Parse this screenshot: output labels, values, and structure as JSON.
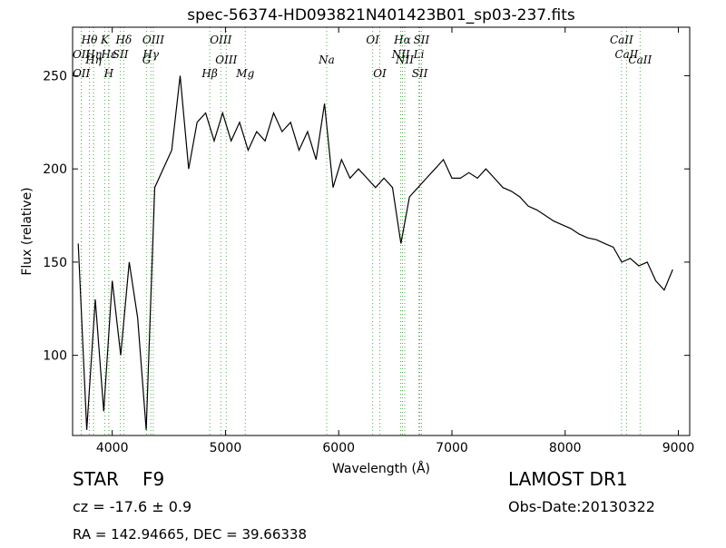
{
  "chart_data": {
    "type": "line",
    "title": "spec-56374-HD093821N401423B01_sp03-237.fits",
    "x_label": "Wavelength (Å)",
    "y_label": "Flux (relative)",
    "xlim": [
      3650,
      9100
    ],
    "ylim": [
      57,
      276
    ],
    "xticks": [
      4000,
      5000,
      6000,
      7000,
      8000,
      9000
    ],
    "yticks": [
      100,
      150,
      200,
      250
    ],
    "x": [
      3700,
      3775,
      3850,
      3925,
      4000,
      4075,
      4150,
      4225,
      4300,
      4375,
      4450,
      4525,
      4600,
      4675,
      4750,
      4825,
      4900,
      4975,
      5050,
      5125,
      5200,
      5275,
      5350,
      5425,
      5500,
      5575,
      5650,
      5725,
      5800,
      5875,
      5950,
      6025,
      6100,
      6175,
      6250,
      6325,
      6400,
      6475,
      6550,
      6625,
      6700,
      6775,
      6850,
      6925,
      7000,
      7075,
      7150,
      7225,
      7300,
      7375,
      7450,
      7525,
      7600,
      7675,
      7750,
      7825,
      7900,
      7975,
      8050,
      8125,
      8200,
      8275,
      8350,
      8425,
      8500,
      8575,
      8650,
      8725,
      8800,
      8875,
      8950
    ],
    "series": [
      {
        "name": "Flux",
        "color": "#000000",
        "values": [
          160,
          60,
          130,
          70,
          140,
          100,
          150,
          120,
          60,
          190,
          200,
          210,
          250,
          200,
          225,
          230,
          215,
          230,
          215,
          225,
          210,
          220,
          215,
          230,
          220,
          225,
          210,
          220,
          205,
          235,
          190,
          205,
          195,
          200,
          195,
          190,
          195,
          190,
          160,
          185,
          190,
          195,
          200,
          205,
          195,
          195,
          198,
          195,
          200,
          195,
          190,
          188,
          185,
          180,
          178,
          175,
          172,
          170,
          168,
          165,
          163,
          162,
          160,
          158,
          150,
          152,
          148,
          150,
          140,
          135,
          146
        ]
      }
    ],
    "line_color": "#55aa55",
    "emission_lines": [
      {
        "wavelength": 3798,
        "label": "Hθ"
      },
      {
        "wavelength": 3727,
        "label": "OII"
      },
      {
        "wavelength": 3934,
        "label": "K"
      },
      {
        "wavelength": 3835,
        "label": "Hη"
      },
      {
        "wavelength": 4102,
        "label": "Hδ"
      },
      {
        "wavelength": 3970,
        "label": "Hε"
      },
      {
        "wavelength": 4363,
        "label": "OIII"
      },
      {
        "wavelength": 4072,
        "label": "SII"
      },
      {
        "wavelength": 4959,
        "label": "OIII"
      },
      {
        "wavelength": 4341,
        "label": "Hγ"
      },
      {
        "wavelength": 6300,
        "label": "OI"
      },
      {
        "wavelength": 6548,
        "label": "NII"
      },
      {
        "wavelength": 6563,
        "label": "Hα"
      },
      {
        "wavelength": 6708,
        "label": "Li"
      },
      {
        "wavelength": 6731,
        "label": "SII"
      },
      {
        "wavelength": 8542,
        "label": "CaII"
      },
      {
        "wavelength": 8498,
        "label": "CaII"
      }
    ],
    "absorption_lines": [
      {
        "wavelength": 3727,
        "label": "OII"
      },
      {
        "wavelength": 3835,
        "label": "Hη"
      },
      {
        "wavelength": 3969,
        "label": "H"
      },
      {
        "wavelength": 4304,
        "label": "G"
      },
      {
        "wavelength": 4861,
        "label": "Hβ"
      },
      {
        "wavelength": 5007,
        "label": "OIII"
      },
      {
        "wavelength": 5175,
        "label": "Mg"
      },
      {
        "wavelength": 5894,
        "label": "Na"
      },
      {
        "wavelength": 6363,
        "label": "OI"
      },
      {
        "wavelength": 6583,
        "label": "NII"
      },
      {
        "wavelength": 6716,
        "label": "SII"
      },
      {
        "wavelength": 8662,
        "label": "CaII"
      }
    ],
    "object_class": "STAR",
    "subclass": "F9",
    "redshift": "cz = -17.6 ± 0.9",
    "coordinates": "RA = 142.94665, DEC = 39.66338",
    "survey": "LAMOST DR1",
    "obs_date": "Obs-Date:20130322"
  }
}
